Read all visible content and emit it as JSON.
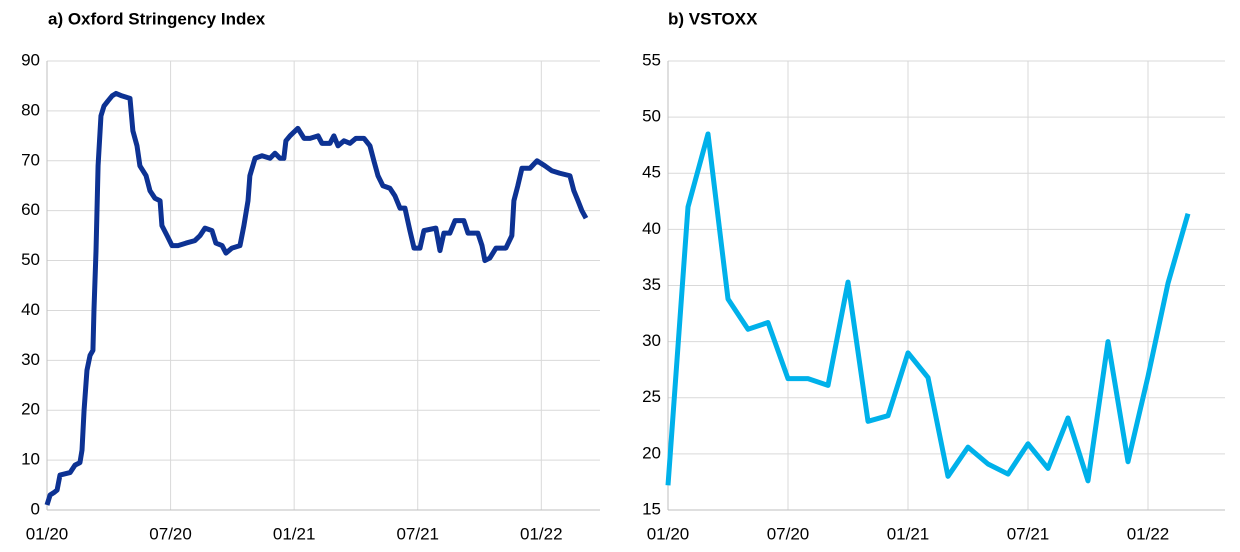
{
  "chart_data": [
    {
      "type": "line",
      "title": "a) Oxford Stringency Index",
      "xlim": [
        0,
        26.85
      ],
      "ylim": [
        0,
        90
      ],
      "xticks": [
        {
          "value": 0,
          "label": "01/20"
        },
        {
          "value": 6,
          "label": "07/20"
        },
        {
          "value": 12,
          "label": "01/21"
        },
        {
          "value": 18,
          "label": "07/21"
        },
        {
          "value": 24,
          "label": "01/22"
        }
      ],
      "yticks": [
        0,
        10,
        20,
        30,
        40,
        50,
        60,
        70,
        80,
        90
      ],
      "grid": true,
      "x": [
        0,
        0.15,
        0.34,
        0.49,
        0.63,
        1.12,
        1.36,
        1.6,
        1.7,
        1.8,
        1.94,
        2.09,
        2.23,
        2.28,
        2.38,
        2.48,
        2.62,
        2.77,
        2.96,
        3.16,
        3.35,
        3.64,
        4.03,
        4.17,
        4.37,
        4.51,
        4.81,
        5.0,
        5.24,
        5.49,
        5.58,
        5.83,
        6.07,
        6.36,
        6.75,
        7.18,
        7.43,
        7.67,
        8.01,
        8.2,
        8.5,
        8.69,
        8.98,
        9.37,
        9.56,
        9.76,
        9.85,
        10.1,
        10.44,
        10.83,
        11.07,
        11.31,
        11.5,
        11.6,
        11.8,
        12.18,
        12.48,
        12.77,
        13.16,
        13.35,
        13.74,
        13.93,
        14.13,
        14.42,
        14.71,
        15.0,
        15.39,
        15.68,
        15.87,
        16.07,
        16.31,
        16.65,
        16.89,
        17.14,
        17.38,
        17.62,
        17.82,
        18.11,
        18.3,
        18.88,
        19.08,
        19.27,
        19.56,
        19.81,
        20.24,
        20.44,
        20.92,
        21.12,
        21.26,
        21.5,
        21.8,
        22.28,
        22.57,
        22.67,
        22.86,
        23.06,
        23.45,
        23.79,
        24.17,
        24.51,
        24.9,
        25.39,
        25.58,
        25.78,
        25.97,
        26.17
      ],
      "series": [
        {
          "color": "#0d3293",
          "values": [
            1,
            3,
            3.5,
            4,
            7,
            7.5,
            9,
            9.5,
            12,
            20,
            28,
            31,
            32,
            40,
            52,
            69,
            79,
            81,
            82,
            83,
            83.5,
            83,
            82.5,
            76,
            73,
            69,
            67,
            64,
            62.5,
            62,
            57,
            55,
            53,
            53,
            53.5,
            54,
            55,
            56.5,
            56,
            53.5,
            53,
            51.5,
            52.5,
            53,
            57,
            62,
            67,
            70.5,
            71,
            70.5,
            71.5,
            70.5,
            70.5,
            74,
            75,
            76.5,
            74.5,
            74.5,
            75,
            73.5,
            73.5,
            75,
            73,
            74,
            73.5,
            74.5,
            74.5,
            73,
            70,
            67,
            65,
            64.5,
            63,
            60.5,
            60.5,
            56,
            52.5,
            52.5,
            56,
            56.5,
            52,
            55.5,
            55.5,
            58,
            58,
            55.5,
            55.5,
            53,
            50,
            50.5,
            52.5,
            52.5,
            55,
            62,
            65,
            68.5,
            68.5,
            70,
            69,
            68,
            67.5,
            67,
            64,
            62,
            60,
            58.5
          ]
        }
      ]
    },
    {
      "type": "line",
      "title": "b) VSTOXX",
      "xlim": [
        0,
        27.85
      ],
      "ylim": [
        15,
        55
      ],
      "xticks": [
        {
          "value": 0,
          "label": "01/20"
        },
        {
          "value": 6,
          "label": "07/20"
        },
        {
          "value": 12,
          "label": "01/21"
        },
        {
          "value": 18,
          "label": "07/21"
        },
        {
          "value": 24,
          "label": "01/22"
        }
      ],
      "yticks": [
        15,
        20,
        25,
        30,
        35,
        40,
        45,
        50,
        55
      ],
      "grid": true,
      "x": [
        0,
        1,
        2,
        3,
        4,
        5,
        6,
        7,
        8,
        9,
        10,
        11,
        12,
        13,
        14,
        15,
        16,
        17,
        18,
        19,
        20,
        21,
        22,
        23,
        24,
        25,
        26
      ],
      "series": [
        {
          "color": "#00b1ea",
          "values": [
            17.2,
            42,
            48.5,
            33.8,
            31.1,
            31.7,
            26.7,
            26.7,
            26.1,
            35.3,
            22.9,
            23.4,
            29,
            26.8,
            18,
            20.6,
            19.1,
            18.2,
            20.9,
            18.7,
            23.2,
            17.6,
            30,
            19.3,
            26.9,
            35.2,
            41.4
          ]
        }
      ]
    }
  ]
}
